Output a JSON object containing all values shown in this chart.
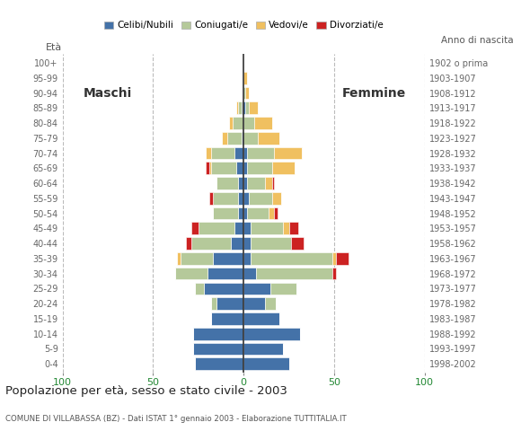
{
  "age_groups": [
    "0-4",
    "5-9",
    "10-14",
    "15-19",
    "20-24",
    "25-29",
    "30-34",
    "35-39",
    "40-44",
    "45-49",
    "50-54",
    "55-59",
    "60-64",
    "65-69",
    "70-74",
    "75-79",
    "80-84",
    "85-89",
    "90-94",
    "95-99",
    "100+"
  ],
  "birth_years": [
    "1998-2002",
    "1993-1997",
    "1988-1992",
    "1983-1987",
    "1978-1982",
    "1973-1977",
    "1968-1972",
    "1963-1967",
    "1958-1962",
    "1953-1957",
    "1948-1952",
    "1943-1947",
    "1938-1942",
    "1933-1937",
    "1928-1932",
    "1923-1927",
    "1918-1922",
    "1913-1917",
    "1908-1912",
    "1903-1907",
    "1902 o prima"
  ],
  "colors": {
    "celibe": "#4472a8",
    "coniugato": "#b5c99a",
    "vedovo": "#f0c060",
    "divorziato": "#cc2222"
  },
  "male": {
    "celibe": [
      27,
      28,
      28,
      18,
      15,
      22,
      20,
      17,
      7,
      5,
      3,
      3,
      3,
      4,
      5,
      1,
      0,
      1,
      0,
      0,
      0
    ],
    "coniugato": [
      0,
      0,
      0,
      0,
      3,
      5,
      18,
      18,
      22,
      20,
      14,
      14,
      12,
      14,
      13,
      8,
      6,
      2,
      0,
      0,
      0
    ],
    "vedovo": [
      0,
      0,
      0,
      0,
      0,
      0,
      0,
      2,
      0,
      0,
      0,
      0,
      0,
      1,
      3,
      3,
      2,
      1,
      0,
      0,
      0
    ],
    "divorziato": [
      0,
      0,
      0,
      0,
      0,
      0,
      0,
      0,
      3,
      4,
      0,
      2,
      0,
      2,
      0,
      0,
      0,
      0,
      0,
      0,
      0
    ]
  },
  "female": {
    "nubile": [
      25,
      22,
      31,
      20,
      12,
      15,
      7,
      4,
      4,
      4,
      2,
      3,
      2,
      2,
      2,
      0,
      0,
      1,
      0,
      0,
      0
    ],
    "coniugata": [
      0,
      0,
      0,
      0,
      6,
      14,
      42,
      45,
      22,
      18,
      12,
      13,
      10,
      14,
      15,
      8,
      6,
      2,
      1,
      0,
      0
    ],
    "vedova": [
      0,
      0,
      0,
      0,
      0,
      0,
      0,
      2,
      0,
      3,
      3,
      5,
      4,
      12,
      15,
      12,
      10,
      5,
      2,
      2,
      0
    ],
    "divorziata": [
      0,
      0,
      0,
      0,
      0,
      0,
      2,
      7,
      7,
      5,
      2,
      0,
      1,
      0,
      0,
      0,
      0,
      0,
      0,
      0,
      0
    ]
  },
  "title": "Popolazione per età, sesso e stato civile - 2003",
  "subtitle": "COMUNE DI VILLABASSA (BZ) - Dati ISTAT 1° gennaio 2003 - Elaborazione TUTTITALIA.IT",
  "xlabel_left": "Maschi",
  "xlabel_right": "Femmine",
  "ylabel": "Età",
  "ylabel_right": "Anno di nascita",
  "xlim": 100,
  "legend_labels": [
    "Celibi/Nubili",
    "Coniugati/e",
    "Vedovi/e",
    "Divorziati/e"
  ],
  "bar_height": 0.82
}
